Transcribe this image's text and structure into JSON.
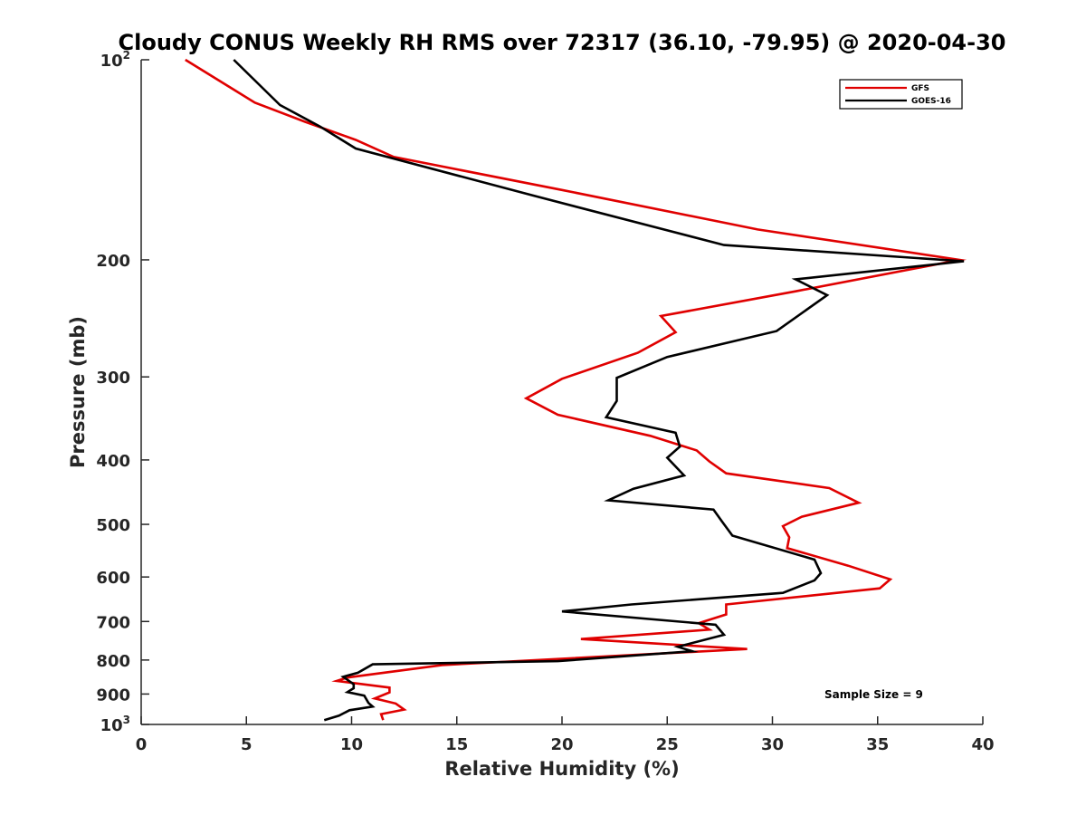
{
  "chart_data": {
    "type": "line",
    "title": "Cloudy CONUS Weekly RH RMS over 72317 (36.10, -79.95) @ 2020-04-30",
    "xlabel": "Relative Humidity (%)",
    "ylabel": "Pressure (mb)",
    "xlim": [
      0,
      40
    ],
    "ylim": [
      100,
      1000
    ],
    "y_scale": "log",
    "y_reversed": true,
    "grid": false,
    "legend_position": "top-right",
    "annotation": "Sample Size = 9",
    "x_ticks": [
      "0",
      "5",
      "10",
      "15",
      "20",
      "25",
      "30",
      "35",
      "40"
    ],
    "y_ticks": [
      {
        "value": 100,
        "base": "10",
        "exp": "2"
      },
      {
        "value": 200,
        "label": "200"
      },
      {
        "value": 300,
        "label": "300"
      },
      {
        "value": 400,
        "label": "400"
      },
      {
        "value": 500,
        "label": "500"
      },
      {
        "value": 600,
        "label": "600"
      },
      {
        "value": 700,
        "label": "700"
      },
      {
        "value": 800,
        "label": "800"
      },
      {
        "value": 900,
        "label": "900"
      },
      {
        "value": 1000,
        "base": "10",
        "exp": "3"
      }
    ],
    "series": [
      {
        "name": "GFS",
        "color": "#e00000",
        "points": [
          [
            2.1,
            100
          ],
          [
            5.4,
            116
          ],
          [
            7.8,
            124
          ],
          [
            10.2,
            132
          ],
          [
            12.0,
            140
          ],
          [
            20.0,
            157
          ],
          [
            29.3,
            180
          ],
          [
            38.9,
            200
          ],
          [
            31.1,
            223
          ],
          [
            24.7,
            243
          ],
          [
            25.4,
            257
          ],
          [
            23.6,
            276
          ],
          [
            20.0,
            302
          ],
          [
            18.3,
            323
          ],
          [
            19.8,
            342
          ],
          [
            24.2,
            368
          ],
          [
            26.4,
            387
          ],
          [
            27.0,
            402
          ],
          [
            27.8,
            419
          ],
          [
            32.7,
            441
          ],
          [
            34.1,
            464
          ],
          [
            31.4,
            487
          ],
          [
            30.5,
            503
          ],
          [
            30.8,
            523
          ],
          [
            30.7,
            543
          ],
          [
            33.6,
            577
          ],
          [
            35.6,
            605
          ],
          [
            35.1,
            624
          ],
          [
            27.8,
            660
          ],
          [
            27.8,
            683
          ],
          [
            26.5,
            704
          ],
          [
            27.0,
            720
          ],
          [
            20.9,
            744
          ],
          [
            28.8,
            770
          ],
          [
            14.3,
            814
          ],
          [
            9.8,
            850
          ],
          [
            9.3,
            860
          ],
          [
            11.8,
            880
          ],
          [
            11.8,
            895
          ],
          [
            11.1,
            914
          ],
          [
            12.1,
            930
          ],
          [
            12.5,
            950
          ],
          [
            11.4,
            965
          ],
          [
            11.5,
            985
          ]
        ]
      },
      {
        "name": "GOES-16",
        "color": "#000000",
        "points": [
          [
            4.4,
            100
          ],
          [
            6.6,
            117
          ],
          [
            8.5,
            126
          ],
          [
            10.2,
            136
          ],
          [
            18.6,
            160
          ],
          [
            27.7,
            190
          ],
          [
            39.1,
            201
          ],
          [
            31.1,
            214
          ],
          [
            32.6,
            226
          ],
          [
            30.2,
            256
          ],
          [
            25.0,
            280
          ],
          [
            22.6,
            301
          ],
          [
            22.6,
            312
          ],
          [
            22.6,
            326
          ],
          [
            22.1,
            345
          ],
          [
            25.4,
            364
          ],
          [
            25.6,
            382
          ],
          [
            25.0,
            397
          ],
          [
            25.8,
            422
          ],
          [
            23.4,
            442
          ],
          [
            22.2,
            460
          ],
          [
            27.2,
            475
          ],
          [
            27.6,
            495
          ],
          [
            28.1,
            520
          ],
          [
            32.0,
            565
          ],
          [
            32.3,
            592
          ],
          [
            32.0,
            607
          ],
          [
            30.5,
            634
          ],
          [
            23.3,
            660
          ],
          [
            20.0,
            676
          ],
          [
            27.3,
            708
          ],
          [
            27.7,
            733
          ],
          [
            25.5,
            764
          ],
          [
            26.2,
            776
          ],
          [
            19.8,
            803
          ],
          [
            11.0,
            812
          ],
          [
            10.3,
            836
          ],
          [
            9.6,
            848
          ],
          [
            10.1,
            870
          ],
          [
            10.1,
            882
          ],
          [
            9.8,
            894
          ],
          [
            10.6,
            905
          ],
          [
            10.8,
            928
          ],
          [
            11.0,
            940
          ],
          [
            9.9,
            952
          ],
          [
            9.4,
            970
          ],
          [
            8.7,
            985
          ]
        ]
      }
    ]
  }
}
